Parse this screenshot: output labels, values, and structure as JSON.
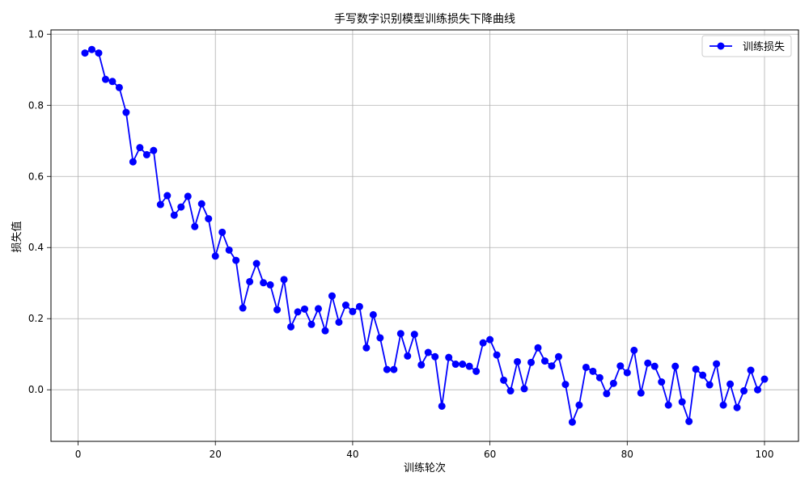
{
  "chart_data": {
    "type": "line",
    "title": "手写数字识别模型训练损失下降曲线",
    "xlabel": "训练轮次",
    "ylabel": "损失值",
    "xlim": [
      -3.95,
      104.95
    ],
    "ylim": [
      -0.145,
      1.012
    ],
    "xticks": [
      0,
      20,
      40,
      60,
      80,
      100
    ],
    "yticks": [
      0.0,
      0.2,
      0.4,
      0.6,
      0.8,
      1.0
    ],
    "xtick_labels": [
      "0",
      "20",
      "40",
      "60",
      "80",
      "100"
    ],
    "ytick_labels": [
      "0.0",
      "0.2",
      "0.4",
      "0.6",
      "0.8",
      "1.0"
    ],
    "grid": true,
    "legend_position": "upper right",
    "series": [
      {
        "name": "训练损失",
        "color": "#0000ff",
        "marker": "circle",
        "x": [
          1,
          2,
          3,
          4,
          5,
          6,
          7,
          8,
          9,
          10,
          11,
          12,
          13,
          14,
          15,
          16,
          17,
          18,
          19,
          20,
          21,
          22,
          23,
          24,
          25,
          26,
          27,
          28,
          29,
          30,
          31,
          32,
          33,
          34,
          35,
          36,
          37,
          38,
          39,
          40,
          41,
          42,
          43,
          44,
          45,
          46,
          47,
          48,
          49,
          50,
          51,
          52,
          53,
          54,
          55,
          56,
          57,
          58,
          59,
          60,
          61,
          62,
          63,
          64,
          65,
          66,
          67,
          68,
          69,
          70,
          71,
          72,
          73,
          74,
          75,
          76,
          77,
          78,
          79,
          80,
          81,
          82,
          83,
          84,
          85,
          86,
          87,
          88,
          89,
          90,
          91,
          92,
          93,
          94,
          95,
          96,
          97,
          98,
          99,
          100
        ],
        "values": [
          0.947,
          0.957,
          0.947,
          0.873,
          0.867,
          0.85,
          0.78,
          0.641,
          0.681,
          0.661,
          0.673,
          0.521,
          0.546,
          0.491,
          0.514,
          0.544,
          0.459,
          0.523,
          0.481,
          0.376,
          0.443,
          0.393,
          0.364,
          0.23,
          0.304,
          0.355,
          0.301,
          0.295,
          0.225,
          0.31,
          0.177,
          0.219,
          0.227,
          0.184,
          0.228,
          0.166,
          0.264,
          0.19,
          0.238,
          0.22,
          0.234,
          0.118,
          0.211,
          0.146,
          0.057,
          0.057,
          0.158,
          0.095,
          0.156,
          0.07,
          0.105,
          0.093,
          -0.046,
          0.091,
          0.072,
          0.072,
          0.066,
          0.052,
          0.132,
          0.141,
          0.098,
          0.027,
          -0.003,
          0.079,
          0.003,
          0.077,
          0.118,
          0.081,
          0.067,
          0.093,
          0.015,
          -0.091,
          -0.043,
          0.063,
          0.052,
          0.034,
          -0.011,
          0.018,
          0.067,
          0.048,
          0.111,
          -0.009,
          0.075,
          0.066,
          0.022,
          -0.043,
          0.066,
          -0.034,
          -0.089,
          0.058,
          0.041,
          0.014,
          0.073,
          -0.043,
          0.016,
          -0.05,
          -0.003,
          0.055,
          0.0,
          0.03
        ]
      }
    ]
  }
}
